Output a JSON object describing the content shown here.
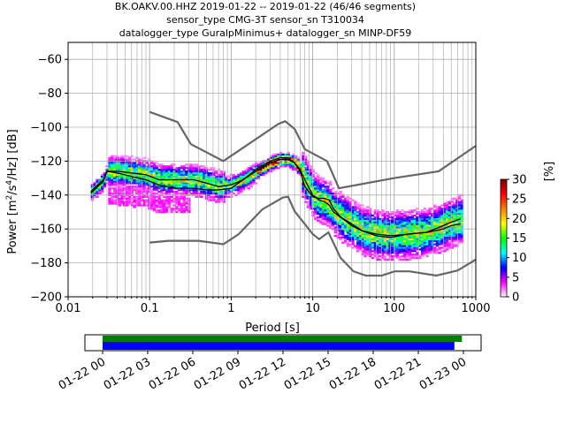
{
  "chart_data": {
    "type": "heatmap",
    "title_lines": [
      "BK.OAKV.00.HHZ   2019-01-22 -- 2019-01-22  (46/46 segments)",
      "sensor_type CMG-3T sensor_sn T310034",
      "datalogger_type GuralpMinimus+ datalogger_sn MINP-DF59"
    ],
    "xlabel": "Period [s]",
    "ylabel_parts": [
      "Power [m",
      "2",
      "/s",
      "4",
      "/Hz] [dB]"
    ],
    "x_scale": "log",
    "xlim": [
      0.01,
      1000
    ],
    "ylim": [
      -200,
      -50
    ],
    "x_ticks": [
      {
        "value": 0.01,
        "label": "0.01"
      },
      {
        "value": 0.1,
        "label": "0.1"
      },
      {
        "value": 1,
        "label": "1"
      },
      {
        "value": 10,
        "label": "10"
      },
      {
        "value": 100,
        "label": "100"
      },
      {
        "value": 1000,
        "label": "1000"
      }
    ],
    "y_ticks": [
      {
        "value": -60,
        "label": "−60"
      },
      {
        "value": -80,
        "label": "−80"
      },
      {
        "value": -100,
        "label": "−100"
      },
      {
        "value": -120,
        "label": "−120"
      },
      {
        "value": -140,
        "label": "−140"
      },
      {
        "value": -160,
        "label": "−160"
      },
      {
        "value": -180,
        "label": "−180"
      },
      {
        "value": -200,
        "label": "−200"
      }
    ],
    "grid": true,
    "colorbar": {
      "label": "[%]",
      "range": [
        0,
        30
      ],
      "ticks": [
        {
          "value": 0,
          "label": "0"
        },
        {
          "value": 5,
          "label": "5"
        },
        {
          "value": 10,
          "label": "10"
        },
        {
          "value": 15,
          "label": "15"
        },
        {
          "value": 20,
          "label": "20"
        },
        {
          "value": 25,
          "label": "25"
        },
        {
          "value": 30,
          "label": "30"
        }
      ],
      "colors": [
        "#ffffff",
        "#ff00ff",
        "#0000ff",
        "#00ffff",
        "#00ff00",
        "#ffff00",
        "#ff8000",
        "#ff0000",
        "#800000"
      ]
    },
    "noise_model_high": [
      [
        0.1,
        -91
      ],
      [
        0.22,
        -97
      ],
      [
        0.32,
        -110
      ],
      [
        0.8,
        -120
      ],
      [
        3.8,
        -98
      ],
      [
        4.6,
        -96.5
      ],
      [
        6,
        -101
      ],
      [
        8,
        -113
      ],
      [
        15,
        -120
      ],
      [
        21,
        -136
      ],
      [
        100,
        -130
      ],
      [
        350,
        -126
      ],
      [
        1000,
        -111
      ]
    ],
    "noise_model_low": [
      [
        0.1,
        -168
      ],
      [
        0.17,
        -167
      ],
      [
        0.4,
        -167
      ],
      [
        0.8,
        -169
      ],
      [
        1.24,
        -163
      ],
      [
        2.4,
        -148.5
      ],
      [
        4.3,
        -141.5
      ],
      [
        5,
        -141
      ],
      [
        6,
        -149.5
      ],
      [
        10,
        -163
      ],
      [
        12,
        -166
      ],
      [
        15.6,
        -162
      ],
      [
        21.9,
        -177
      ],
      [
        31.6,
        -185
      ],
      [
        45,
        -187.5
      ],
      [
        70,
        -187.5
      ],
      [
        101,
        -185
      ],
      [
        154,
        -185
      ],
      [
        328,
        -187.5
      ],
      [
        600,
        -184.5
      ],
      [
        1000,
        -178
      ]
    ],
    "mode_curve": [
      [
        0.019,
        -138
      ],
      [
        0.022,
        -135
      ],
      [
        0.027,
        -131
      ],
      [
        0.03,
        -126
      ],
      [
        0.04,
        -126
      ],
      [
        0.06,
        -127
      ],
      [
        0.09,
        -128
      ],
      [
        0.13,
        -131
      ],
      [
        0.2,
        -131
      ],
      [
        0.35,
        -131
      ],
      [
        0.5,
        -133
      ],
      [
        0.7,
        -135
      ],
      [
        1,
        -134
      ],
      [
        1.4,
        -131
      ],
      [
        2,
        -126
      ],
      [
        3,
        -121
      ],
      [
        4,
        -119
      ],
      [
        5,
        -119
      ],
      [
        6,
        -121
      ],
      [
        7,
        -125
      ],
      [
        8,
        -131
      ],
      [
        10,
        -140
      ],
      [
        12,
        -143
      ],
      [
        14,
        -144
      ],
      [
        16,
        -146
      ],
      [
        18,
        -150
      ],
      [
        22,
        -153
      ],
      [
        30,
        -157
      ],
      [
        40,
        -161
      ],
      [
        60,
        -163
      ],
      [
        90,
        -164
      ],
      [
        150,
        -163
      ],
      [
        250,
        -162
      ],
      [
        400,
        -158
      ],
      [
        500,
        -156
      ],
      [
        650,
        -154
      ]
    ],
    "mean_curve": [
      [
        0.019,
        -139
      ],
      [
        0.022,
        -136
      ],
      [
        0.027,
        -132
      ],
      [
        0.03,
        -126
      ],
      [
        0.04,
        -127
      ],
      [
        0.06,
        -129
      ],
      [
        0.09,
        -131
      ],
      [
        0.13,
        -134
      ],
      [
        0.2,
        -136
      ],
      [
        0.35,
        -136
      ],
      [
        0.5,
        -137
      ],
      [
        0.7,
        -137
      ],
      [
        1,
        -136
      ],
      [
        1.4,
        -131
      ],
      [
        2,
        -125
      ],
      [
        3,
        -120
      ],
      [
        4,
        -118
      ],
      [
        5,
        -118
      ],
      [
        6,
        -121
      ],
      [
        7,
        -126
      ],
      [
        8,
        -135
      ],
      [
        10,
        -141
      ],
      [
        12,
        -142
      ],
      [
        14,
        -142
      ],
      [
        16,
        -143
      ],
      [
        18,
        -148
      ],
      [
        22,
        -153
      ],
      [
        30,
        -158
      ],
      [
        40,
        -161
      ],
      [
        60,
        -164
      ],
      [
        90,
        -165
      ],
      [
        150,
        -163
      ],
      [
        250,
        -162
      ],
      [
        400,
        -160
      ],
      [
        500,
        -158
      ],
      [
        650,
        -157
      ]
    ],
    "timeline": {
      "range": [
        "01-22 00",
        "01-23 00"
      ],
      "ticks": [
        {
          "hour": 0,
          "label": "01-22 00"
        },
        {
          "hour": 3,
          "label": "01-22 03"
        },
        {
          "hour": 6,
          "label": "01-22 06"
        },
        {
          "hour": 9,
          "label": "01-22 09"
        },
        {
          "hour": 12,
          "label": "01-22 12"
        },
        {
          "hour": 15,
          "label": "01-22 15"
        },
        {
          "hour": 18,
          "label": "01-22 18"
        },
        {
          "hour": 21,
          "label": "01-22 21"
        },
        {
          "hour": 24,
          "label": "01-23 00"
        }
      ],
      "data_bar_hours": [
        0,
        23.9
      ],
      "used_bar_hours": [
        0,
        23.4
      ],
      "data_color": "#008000",
      "used_color": "#0000ff"
    }
  }
}
